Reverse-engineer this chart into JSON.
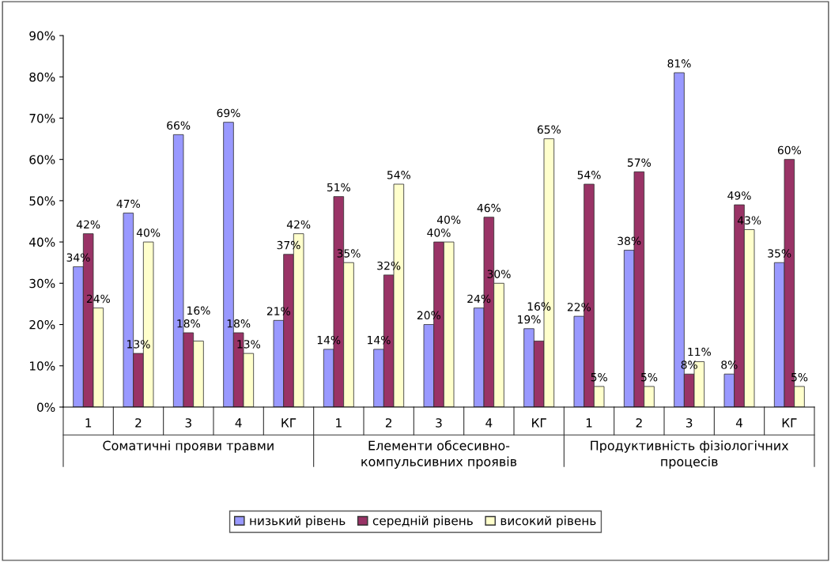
{
  "chart_data": {
    "type": "bar",
    "categories": [
      "1",
      "2",
      "3",
      "4",
      "КГ",
      "1",
      "2",
      "3",
      "4",
      "КГ",
      "1",
      "2",
      "3",
      "4",
      "КГ"
    ],
    "series": [
      {
        "name": "низький рівень",
        "color": "#9999ff",
        "values": [
          34,
          47,
          66,
          69,
          21,
          14,
          14,
          20,
          24,
          19,
          22,
          38,
          81,
          8,
          35
        ],
        "value_labels": [
          "34%",
          "47%",
          "66%",
          "69%",
          "21%",
          "14%",
          "14%",
          "20%",
          "24%",
          "19%",
          "22%",
          "38%",
          "81%",
          "8%",
          "35%"
        ]
      },
      {
        "name": "середній рівень",
        "color": "#993366",
        "values": [
          42,
          13,
          18,
          18,
          37,
          51,
          32,
          40,
          46,
          16,
          54,
          57,
          8,
          49,
          60
        ],
        "value_labels": [
          "42%",
          "13%",
          "18%",
          "18%",
          "37%",
          "51%",
          "32%",
          "40%",
          "46%",
          "16%",
          "54%",
          "57%",
          "8%",
          "49%",
          "60%"
        ]
      },
      {
        "name": "високий рівень",
        "color": "#ffffcc",
        "values": [
          24,
          40,
          16,
          13,
          42,
          35,
          54,
          40,
          30,
          65,
          5,
          5,
          11,
          43,
          5
        ],
        "value_labels": [
          "24%",
          "40%",
          "16%",
          "13%",
          "42%",
          "35%",
          "54%",
          "40%",
          "30%",
          "65%",
          "5%",
          "5%",
          "11%",
          "43%",
          "5%"
        ]
      }
    ],
    "annotations": [
      "Соматичні прояви травми",
      "Елементи обсесивно-\nкомпульсивних проявів",
      "Продуктивність фізіологічних\nпроцесів"
    ],
    "ylim": [
      0,
      90
    ],
    "yticks": [
      {
        "value": 0,
        "label": "0%"
      },
      {
        "value": 10,
        "label": "10%"
      },
      {
        "value": 20,
        "label": "20%"
      },
      {
        "value": 30,
        "label": "30%"
      },
      {
        "value": 40,
        "label": "40%"
      },
      {
        "value": 50,
        "label": "50%"
      },
      {
        "value": 60,
        "label": "60%"
      },
      {
        "value": 70,
        "label": "70%"
      },
      {
        "value": 80,
        "label": "80%"
      },
      {
        "value": 90,
        "label": "90%"
      }
    ],
    "legend": "bottom"
  }
}
